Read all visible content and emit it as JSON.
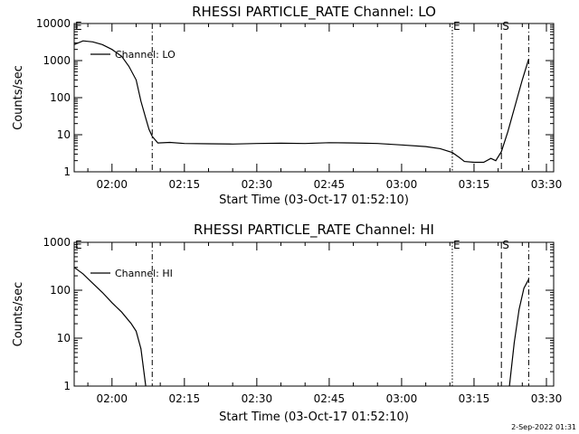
{
  "chart_data": [
    {
      "type": "line",
      "title": "RHESSI PARTICLE_RATE Channel: LO",
      "xlabel": "Start Time (03-Oct-17 01:52:10)",
      "ylabel": "Counts/sec",
      "y_scale": "log",
      "ylim": [
        1,
        10000
      ],
      "y_ticks": [
        1,
        10,
        100,
        1000,
        10000
      ],
      "y_tick_labels": [
        "1",
        "10",
        "100",
        "1000",
        "10000"
      ],
      "xlim": [
        "01:52:10",
        "03:31:30"
      ],
      "x_ticks": [
        "02:00",
        "02:15",
        "02:30",
        "02:45",
        "03:00",
        "03:15",
        "03:30"
      ],
      "legend": {
        "entries": [
          "Channel: LO"
        ],
        "placement": "top-left"
      },
      "event_markers": [
        {
          "time": "02:08:20",
          "style": "dash-dot",
          "label": ""
        },
        {
          "time": "03:10:30",
          "style": "dotted",
          "label": "E"
        },
        {
          "time": "03:20:40",
          "style": "dashed",
          "label": "S"
        },
        {
          "time": "03:26:20",
          "style": "dash-dot",
          "label": ""
        }
      ],
      "edge_label": "E",
      "series": [
        {
          "name": "Channel: LO",
          "points": [
            [
              "01:52:10",
              2700
            ],
            [
              "01:54:00",
              3400
            ],
            [
              "01:56:00",
              3200
            ],
            [
              "01:58:00",
              2700
            ],
            [
              "02:00:00",
              2000
            ],
            [
              "02:02:00",
              1300
            ],
            [
              "02:03:30",
              700
            ],
            [
              "02:05:00",
              300
            ],
            [
              "02:06:00",
              80
            ],
            [
              "02:07:00",
              28
            ],
            [
              "02:07:40",
              14
            ],
            [
              "02:08:20",
              9
            ],
            [
              "02:09:30",
              6
            ],
            [
              "02:12:00",
              6.2
            ],
            [
              "02:15:00",
              5.8
            ],
            [
              "02:20:00",
              5.7
            ],
            [
              "02:25:00",
              5.6
            ],
            [
              "02:30:00",
              5.8
            ],
            [
              "02:35:00",
              5.9
            ],
            [
              "02:40:00",
              5.8
            ],
            [
              "02:45:00",
              6.1
            ],
            [
              "02:50:00",
              6.0
            ],
            [
              "02:55:00",
              5.8
            ],
            [
              "03:00:00",
              5.3
            ],
            [
              "03:05:00",
              4.8
            ],
            [
              "03:08:00",
              4.2
            ],
            [
              "03:10:30",
              3.3
            ],
            [
              "03:12:00",
              2.4
            ],
            [
              "03:13:00",
              1.9
            ],
            [
              "03:15:00",
              1.8
            ],
            [
              "03:17:00",
              1.8
            ],
            [
              "03:18:30",
              2.3
            ],
            [
              "03:19:30",
              2.0
            ],
            [
              "03:20:40",
              3.5
            ],
            [
              "03:22:00",
              12
            ],
            [
              "03:23:30",
              60
            ],
            [
              "03:25:00",
              300
            ],
            [
              "03:26:20",
              1100
            ]
          ]
        }
      ]
    },
    {
      "type": "line",
      "title": "RHESSI PARTICLE_RATE Channel: HI",
      "xlabel": "Start Time (03-Oct-17 01:52:10)",
      "ylabel": "Counts/sec",
      "y_scale": "log",
      "ylim": [
        1,
        1000
      ],
      "y_ticks": [
        1,
        10,
        100,
        1000
      ],
      "y_tick_labels": [
        "1",
        "10",
        "100",
        "1000"
      ],
      "xlim": [
        "01:52:10",
        "03:31:30"
      ],
      "x_ticks": [
        "02:00",
        "02:15",
        "02:30",
        "02:45",
        "03:00",
        "03:15",
        "03:30"
      ],
      "legend": {
        "entries": [
          "Channel: HI"
        ],
        "placement": "top-left"
      },
      "event_markers": [
        {
          "time": "02:08:20",
          "style": "dash-dot",
          "label": ""
        },
        {
          "time": "03:10:30",
          "style": "dotted",
          "label": "E"
        },
        {
          "time": "03:20:40",
          "style": "dashed",
          "label": "S"
        },
        {
          "time": "03:26:20",
          "style": "dash-dot",
          "label": ""
        }
      ],
      "edge_label": "E",
      "series": [
        {
          "name": "Channel: HI",
          "points": [
            [
              "01:52:10",
              300
            ],
            [
              "01:54:00",
              220
            ],
            [
              "01:56:00",
              140
            ],
            [
              "01:58:00",
              90
            ],
            [
              "02:00:00",
              55
            ],
            [
              "02:02:00",
              35
            ],
            [
              "02:04:00",
              20
            ],
            [
              "02:05:00",
              14
            ],
            [
              "02:06:00",
              6
            ],
            [
              "02:07:00",
              1
            ]
          ]
        },
        {
          "name": "Channel: HI",
          "points": [
            [
              "03:22:20",
              1
            ],
            [
              "03:23:20",
              8
            ],
            [
              "03:24:20",
              40
            ],
            [
              "03:25:20",
              110
            ],
            [
              "03:26:20",
              170
            ]
          ]
        }
      ]
    }
  ],
  "footer": {
    "stamp": "2-Sep-2022 01:31"
  }
}
